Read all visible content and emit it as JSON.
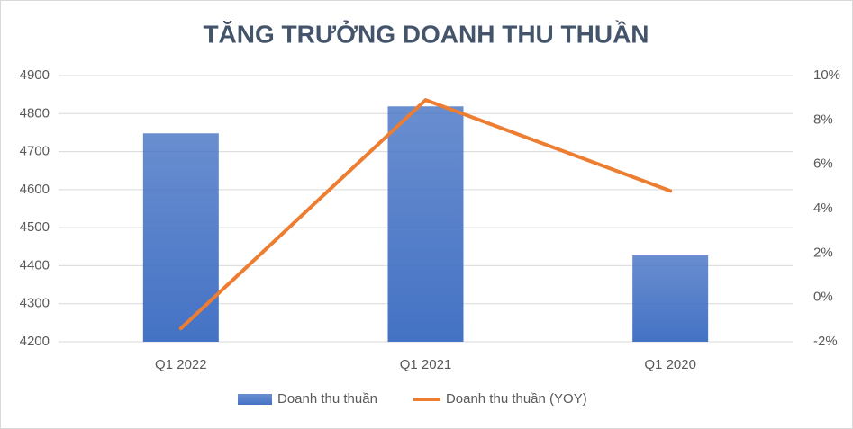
{
  "chart_data": {
    "type": "bar-line",
    "title": "TĂNG TRƯỞNG DOANH THU THUẦN",
    "categories": [
      "Q1 2022",
      "Q1 2021",
      "Q1 2020"
    ],
    "series": [
      {
        "name": "Doanh thu thuần",
        "type": "bar",
        "color": "#4472c4",
        "values": [
          4748,
          4819,
          4427
        ]
      },
      {
        "name": "Doanh thu thuần (YOY)",
        "type": "line",
        "color": "#ed7d31",
        "axis": "y2",
        "values": [
          -1.4,
          8.9,
          4.8
        ]
      }
    ],
    "ylim": [
      4200,
      4900
    ],
    "yticks": [
      4200,
      4300,
      4400,
      4500,
      4600,
      4700,
      4800,
      4900
    ],
    "y2lim": [
      -2,
      10
    ],
    "y2ticks": [
      {
        "value": -2,
        "label": "-2%"
      },
      {
        "value": 0,
        "label": "0%"
      },
      {
        "value": 2,
        "label": "2%"
      },
      {
        "value": 4,
        "label": "4%"
      },
      {
        "value": 6,
        "label": "6%"
      },
      {
        "value": 8,
        "label": "8%"
      },
      {
        "value": 10,
        "label": "10%"
      }
    ],
    "grid": true,
    "legend": "bottom"
  }
}
